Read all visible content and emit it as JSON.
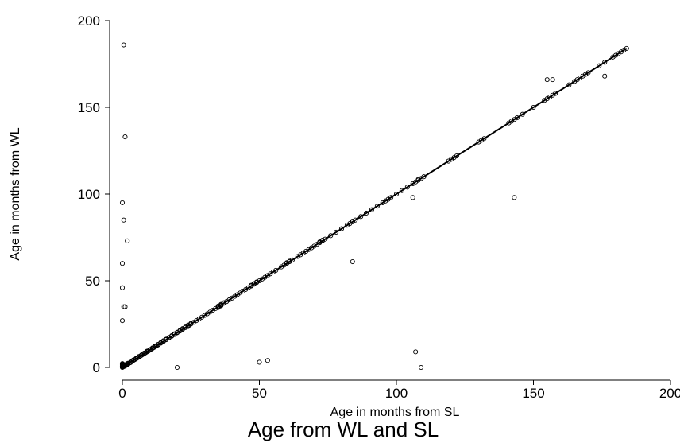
{
  "chart_data": {
    "type": "scatter",
    "title": "Age from WL and SL",
    "xlabel": "Age in months from SL",
    "ylabel": "Age in months from WL",
    "xlim": [
      0,
      200
    ],
    "ylim": [
      0,
      200
    ],
    "xticks": [
      0,
      50,
      100,
      150,
      200
    ],
    "yticks": [
      0,
      50,
      100,
      150,
      200
    ],
    "xtick_labels": [
      "0",
      "50",
      "100",
      "150",
      "200"
    ],
    "ytick_labels": [
      "0",
      "50",
      "100",
      "150",
      "200"
    ],
    "grid": false,
    "legend": "none",
    "marker_color": "#000000",
    "line_color": "#000000",
    "fit_line": {
      "x": [
        0,
        184
      ],
      "y": [
        0,
        184
      ]
    },
    "series": [
      {
        "marker": "hollow-circle",
        "x": [
          0,
          0,
          0,
          0,
          0,
          0,
          0,
          0,
          0,
          0,
          0,
          0,
          0.5,
          0.5,
          0.5,
          0.7,
          1,
          1,
          1,
          1,
          1.5,
          2,
          2,
          2,
          2.5,
          3,
          3,
          3.5,
          4,
          4,
          4.5,
          5,
          5,
          5.5,
          6,
          6,
          6.5,
          7,
          7,
          7.5,
          8,
          8,
          8.5,
          9,
          9,
          9.5,
          10,
          10,
          10.5,
          11,
          11,
          11.5,
          12,
          12,
          12.5,
          13,
          13,
          14,
          14,
          15,
          15,
          16,
          16,
          17,
          17,
          18,
          18,
          19,
          19,
          20,
          20,
          21,
          21,
          22,
          22,
          23,
          23,
          24,
          24,
          24,
          25,
          25,
          26,
          27,
          28,
          29,
          30,
          31,
          32,
          33,
          34,
          35,
          35,
          35,
          36,
          36,
          36,
          37,
          37,
          38,
          39,
          40,
          41,
          42,
          43,
          44,
          45,
          46,
          47,
          47,
          48,
          48,
          49,
          49,
          50,
          51,
          52,
          53,
          54,
          55,
          56,
          58,
          59,
          60,
          60,
          61,
          61,
          62,
          64,
          65,
          66,
          67,
          68,
          69,
          70,
          71,
          72,
          72,
          73,
          73,
          74,
          76,
          78,
          80,
          82,
          83,
          84,
          84,
          85,
          87,
          89,
          91,
          93,
          95,
          96,
          97,
          98,
          100,
          102,
          104,
          106,
          107,
          108,
          108,
          109,
          110,
          119,
          120,
          121,
          122,
          130,
          131,
          132,
          141,
          142,
          143,
          144,
          146,
          150,
          154,
          155,
          156,
          157,
          158,
          163,
          165,
          166,
          167,
          168,
          169,
          170,
          174,
          176,
          179,
          180,
          181,
          182,
          183,
          184,
          0.5,
          1,
          0,
          0,
          0,
          0,
          1,
          0.5,
          1.8,
          0.5,
          20,
          50,
          53,
          84,
          106,
          107,
          109,
          143,
          155,
          157,
          176
        ],
        "y": [
          0.3,
          0.5,
          0,
          0.8,
          1.2,
          1.5,
          2,
          2.2,
          0.2,
          0.9,
          1.8,
          0.6,
          0.5,
          1,
          1.4,
          0.7,
          1,
          1.6,
          0.8,
          1.3,
          1.5,
          2,
          1.8,
          2.4,
          2.5,
          3,
          2.8,
          3.5,
          4,
          4.3,
          4.5,
          5,
          5.2,
          5.5,
          6,
          6.3,
          6.5,
          7,
          7.2,
          7.5,
          8,
          8.3,
          8.5,
          9,
          9.4,
          9.5,
          10,
          10.3,
          10.5,
          11,
          11.3,
          11.5,
          12,
          12.4,
          12.5,
          13,
          13.3,
          14,
          14.3,
          15,
          15.4,
          16,
          16.3,
          17,
          17.3,
          18,
          18.3,
          19,
          19.4,
          20,
          20.3,
          21,
          21.3,
          22,
          22.4,
          23,
          23.3,
          24,
          24.4,
          23.6,
          25,
          25.4,
          26,
          27,
          28,
          29,
          30,
          31,
          32,
          33,
          34,
          35,
          35.4,
          34.6,
          36,
          36.4,
          35.6,
          37,
          37.3,
          38,
          39,
          40,
          41,
          42,
          43,
          44,
          45,
          46,
          47,
          47.4,
          48,
          48.4,
          49,
          49.3,
          50,
          51,
          52,
          53,
          54,
          55,
          56,
          58,
          59,
          60,
          60.4,
          61,
          61.3,
          62,
          64,
          65,
          66,
          67,
          68,
          69,
          70,
          71,
          72,
          72.4,
          73,
          73.4,
          74,
          76,
          78,
          80,
          82,
          83,
          84,
          84.4,
          85,
          87,
          89,
          91,
          93,
          95,
          96,
          97,
          98,
          100,
          102,
          104,
          106,
          107,
          108,
          108.5,
          109,
          110,
          119,
          120,
          121,
          122,
          130,
          131,
          132,
          141,
          142,
          143,
          144,
          146,
          150,
          154,
          155,
          156,
          157,
          158,
          163,
          165,
          166,
          167,
          168,
          169,
          170,
          174,
          176,
          179,
          180,
          181,
          182,
          183,
          184,
          186,
          133,
          95,
          60,
          46,
          27,
          35,
          35,
          73,
          85,
          0,
          3,
          4,
          61,
          98,
          9,
          0,
          98,
          166,
          166,
          168
        ]
      }
    ]
  }
}
